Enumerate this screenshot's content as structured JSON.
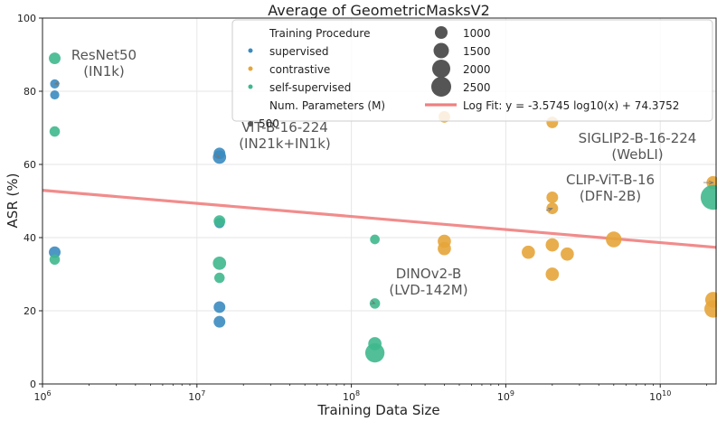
{
  "chart_data": {
    "type": "scatter",
    "title": "Average of GeometricMasksV2",
    "xlabel": "Training Data Size",
    "ylabel": "ASR (%)",
    "xscale": "log",
    "xlim": [
      1000000,
      23000000000
    ],
    "ylim": [
      0,
      100
    ],
    "x_ticks": [
      {
        "value": 1000000,
        "base": "10",
        "exp": "6"
      },
      {
        "value": 10000000,
        "base": "10",
        "exp": "7"
      },
      {
        "value": 100000000,
        "base": "10",
        "exp": "8"
      },
      {
        "value": 1000000000,
        "base": "10",
        "exp": "9"
      },
      {
        "value": 10000000000,
        "base": "10",
        "exp": "10"
      }
    ],
    "y_ticks": [
      0,
      20,
      40,
      60,
      80,
      100
    ],
    "grid": true,
    "colors": {
      "supervised": "#3b8bbf",
      "contrastive": "#e6a53a",
      "self-supervised": "#3fb88e",
      "fit": "#f08080"
    },
    "series": [
      {
        "name": "supervised",
        "points": [
          {
            "x": 1200000,
            "y": 82,
            "s": 25
          },
          {
            "x": 1200000,
            "y": 79,
            "s": 25
          },
          {
            "x": 1200000,
            "y": 36,
            "s": 60
          },
          {
            "x": 14000000,
            "y": 63,
            "s": 60
          },
          {
            "x": 14000000,
            "y": 62,
            "s": 90
          },
          {
            "x": 14000000,
            "y": 44,
            "s": 40
          },
          {
            "x": 14000000,
            "y": 21,
            "s": 60
          },
          {
            "x": 14000000,
            "y": 17,
            "s": 60
          }
        ]
      },
      {
        "name": "contrastive",
        "points": [
          {
            "x": 400000000,
            "y": 73,
            "s": 60
          },
          {
            "x": 400000000,
            "y": 39,
            "s": 90
          },
          {
            "x": 400000000,
            "y": 37,
            "s": 90
          },
          {
            "x": 1400000000,
            "y": 36,
            "s": 90
          },
          {
            "x": 2000000000,
            "y": 71.5,
            "s": 60
          },
          {
            "x": 2000000000,
            "y": 51,
            "s": 60
          },
          {
            "x": 2000000000,
            "y": 48,
            "s": 60
          },
          {
            "x": 2000000000,
            "y": 38,
            "s": 90
          },
          {
            "x": 2000000000,
            "y": 30,
            "s": 90
          },
          {
            "x": 2500000000,
            "y": 35.5,
            "s": 90
          },
          {
            "x": 5000000000,
            "y": 39.5,
            "s": 150
          },
          {
            "x": 22000000000,
            "y": 55,
            "s": 90
          },
          {
            "x": 22000000000,
            "y": 23,
            "s": 150
          },
          {
            "x": 22000000000,
            "y": 20.5,
            "s": 200
          }
        ]
      },
      {
        "name": "self-supervised",
        "points": [
          {
            "x": 1200000,
            "y": 89,
            "s": 60
          },
          {
            "x": 1200000,
            "y": 69,
            "s": 40
          },
          {
            "x": 1200000,
            "y": 34,
            "s": 40
          },
          {
            "x": 14000000,
            "y": 44.5,
            "s": 60
          },
          {
            "x": 14000000,
            "y": 33,
            "s": 90
          },
          {
            "x": 14000000,
            "y": 29,
            "s": 40
          },
          {
            "x": 142000000,
            "y": 39.5,
            "s": 30
          },
          {
            "x": 142000000,
            "y": 22,
            "s": 40
          },
          {
            "x": 142000000,
            "y": 11,
            "s": 90
          },
          {
            "x": 142000000,
            "y": 8.5,
            "s": 260
          },
          {
            "x": 22000000000,
            "y": 51,
            "s": 500
          }
        ]
      }
    ],
    "fit": {
      "label": "Log Fit: y = -3.5745 log10(x) + 74.3752",
      "slope": -3.5745,
      "intercept": 74.3752
    },
    "legend": {
      "position": "top",
      "procedure_title": "Training Procedure",
      "procedure_items": [
        "supervised",
        "contrastive",
        "self-supervised"
      ],
      "params_title": "Num. Parameters (M)",
      "size_items": [
        "500",
        "1000",
        "1500",
        "2000",
        "2500"
      ]
    },
    "annotations": [
      {
        "line1": "ResNet50",
        "line2": "(IN1k)",
        "x": 1200000,
        "y": 82
      },
      {
        "line1": "ViT-B-16-224",
        "line2": "(IN21k+IN1k)",
        "x": 14000000,
        "y": 62
      },
      {
        "line1": "SIGLIP2-B-16-224",
        "line2": "(WebLI)",
        "x": 22000000000,
        "y": 55
      },
      {
        "line1": "CLIP-ViT-B-16",
        "line2": "(DFN-2B)",
        "x": 2000000000,
        "y": 48
      },
      {
        "line1": "DINOv2-B",
        "line2": "(LVD-142M)",
        "x": 142000000,
        "y": 22
      }
    ]
  }
}
